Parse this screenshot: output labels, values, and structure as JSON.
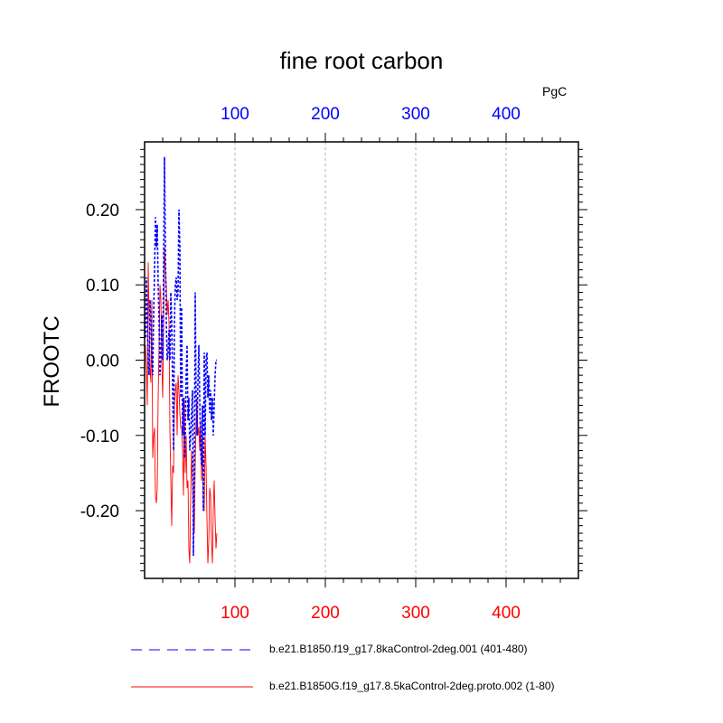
{
  "chart_data": {
    "type": "line",
    "title": "fine root carbon",
    "top_axis_units": "PgC",
    "ylabel": "FROOTC",
    "xlim": [
      0,
      480
    ],
    "ylim": [
      -0.29,
      0.29
    ],
    "x_ticks": [
      "100",
      "200",
      "300",
      "400"
    ],
    "y_ticks": [
      "0.20",
      "0.10",
      "0.00",
      "-0.10",
      "-0.20"
    ],
    "x_tick_values": [
      100,
      200,
      300,
      400
    ],
    "y_tick_values": [
      0.2,
      0.1,
      0.0,
      -0.1,
      -0.2
    ],
    "grid": "vertical dashed lines at major x ticks",
    "legend_position": "bottom",
    "colors": {
      "top_axis": "#0000ff",
      "bottom_axis": "#ff0000",
      "series_1": "#0000ff",
      "series_2": "#ff0000"
    },
    "series": [
      {
        "name": "b.e21.B1850.f19_g17.8kaControl-2deg.001 (401-480)",
        "style": "dashed",
        "color": "#0000ff",
        "x": [
          1,
          2,
          3,
          4,
          5,
          6,
          7,
          8,
          9,
          10,
          11,
          12,
          13,
          14,
          15,
          16,
          17,
          18,
          19,
          20,
          21,
          22,
          23,
          24,
          25,
          26,
          27,
          28,
          29,
          30,
          31,
          32,
          33,
          34,
          35,
          36,
          37,
          38,
          39,
          40,
          41,
          42,
          43,
          44,
          45,
          46,
          47,
          48,
          49,
          50,
          51,
          52,
          53,
          54,
          55,
          56,
          57,
          58,
          59,
          60,
          61,
          62,
          63,
          64,
          65,
          66,
          67,
          68,
          69,
          70,
          71,
          72,
          73,
          74,
          75,
          76,
          77,
          78,
          79,
          80
        ],
        "y": [
          0.03,
          0.11,
          0.05,
          0.0,
          -0.02,
          0.08,
          0.05,
          0.0,
          -0.02,
          0.06,
          0.12,
          0.19,
          0.15,
          0.18,
          0.1,
          0.05,
          -0.02,
          0.01,
          0.06,
          0.0,
          0.12,
          0.27,
          0.15,
          0.05,
          0.0,
          0.01,
          0.04,
          0.0,
          0.09,
          0.05,
          -0.03,
          -0.12,
          0.05,
          0.1,
          0.11,
          0.08,
          0.09,
          0.2,
          0.15,
          -0.05,
          0.07,
          -0.1,
          -0.05,
          -0.13,
          -0.1,
          -0.02,
          0.02,
          -0.08,
          -0.05,
          -0.12,
          -0.1,
          -0.07,
          -0.04,
          -0.26,
          -0.15,
          0.09,
          -0.05,
          -0.1,
          -0.03,
          0.02,
          -0.05,
          -0.12,
          -0.14,
          -0.06,
          -0.2,
          0.01,
          -0.1,
          0.0,
          0.01,
          -0.05,
          -0.02,
          -0.07,
          -0.04,
          -0.08,
          -0.05,
          -0.1,
          -0.06,
          -0.02,
          0.0,
          0.0
        ]
      },
      {
        "name": "b.e21.B1850G.f19_g17.8.5kaControl-2deg.proto.002 (1-80)",
        "style": "solid",
        "color": "#ff0000",
        "x": [
          1,
          2,
          3,
          4,
          5,
          6,
          7,
          8,
          9,
          10,
          11,
          12,
          13,
          14,
          15,
          16,
          17,
          18,
          19,
          20,
          21,
          22,
          23,
          24,
          25,
          26,
          27,
          28,
          29,
          30,
          31,
          32,
          33,
          34,
          35,
          36,
          37,
          38,
          39,
          40,
          41,
          42,
          43,
          44,
          45,
          46,
          47,
          48,
          49,
          50,
          51,
          52,
          53,
          54,
          55,
          56,
          57,
          58,
          59,
          60,
          61,
          62,
          63,
          64,
          65,
          66,
          67,
          68,
          69,
          70,
          71,
          72,
          73,
          74,
          75,
          76,
          77,
          78,
          79,
          80
        ],
        "y": [
          0.02,
          -0.01,
          -0.06,
          0.13,
          0.05,
          -0.01,
          -0.03,
          0.08,
          -0.13,
          -0.1,
          -0.09,
          -0.18,
          -0.19,
          -0.17,
          -0.05,
          0.02,
          0.1,
          0.08,
          0.0,
          -0.05,
          0.04,
          0.15,
          0.12,
          0.1,
          0.06,
          0.08,
          0.05,
          -0.09,
          -0.16,
          -0.22,
          -0.14,
          -0.15,
          -0.06,
          -0.04,
          -0.03,
          -0.1,
          -0.02,
          -0.04,
          -0.07,
          -0.09,
          -0.09,
          -0.12,
          -0.18,
          -0.05,
          -0.15,
          -0.1,
          -0.17,
          -0.16,
          -0.25,
          -0.27,
          -0.18,
          -0.12,
          -0.16,
          -0.2,
          -0.23,
          -0.14,
          -0.08,
          -0.05,
          -0.1,
          -0.09,
          -0.12,
          -0.08,
          -0.16,
          -0.1,
          -0.2,
          -0.2,
          -0.1,
          -0.14,
          -0.21,
          -0.27,
          -0.24,
          -0.17,
          -0.18,
          -0.24,
          -0.27,
          -0.2,
          -0.16,
          -0.21,
          -0.25,
          -0.23
        ]
      }
    ]
  }
}
